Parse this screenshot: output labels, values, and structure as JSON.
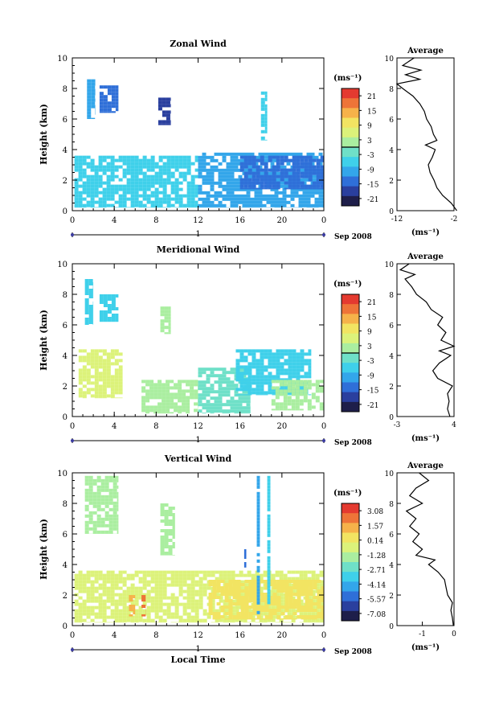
{
  "date_label": "Sep 2008",
  "colorbar_colors": [
    "#1e1e4a",
    "#2a3f9e",
    "#2f6fd8",
    "#33a6ea",
    "#3fd0ea",
    "#6fe0c8",
    "#aaeea0",
    "#dcf27a",
    "#f2e462",
    "#f6b24a",
    "#ee7438",
    "#e43a30"
  ],
  "chart_data": [
    {
      "type": "heatmap",
      "title": "Zonal Wind",
      "xlabel": "",
      "ylabel": "Height (km)",
      "x_ticks": [
        "0",
        "4",
        "8",
        "12",
        "16",
        "20",
        "0"
      ],
      "y_ticks": [
        "0",
        "2",
        "4",
        "6",
        "8",
        "10"
      ],
      "xlim": [
        0,
        24
      ],
      "ylim": [
        0,
        10
      ],
      "day_label": "1",
      "colorbar_unit": "(ms⁻¹)",
      "colorbar_ticks": [
        "21",
        "15",
        "9",
        "3",
        "-3",
        "-9",
        "-15",
        "-21"
      ],
      "colorbar_zero_line_between": [
        "3",
        "-3"
      ],
      "patches": [
        {
          "x0": 1.4,
          "x1": 2.2,
          "y0": 6.0,
          "y1": 8.6,
          "level": 3
        },
        {
          "x0": 2.6,
          "x1": 4.4,
          "y0": 6.4,
          "y1": 8.2,
          "level": 2
        },
        {
          "x0": 8.2,
          "x1": 9.4,
          "y0": 5.6,
          "y1": 7.4,
          "level": 1
        },
        {
          "x0": 18.0,
          "x1": 18.6,
          "y0": 4.6,
          "y1": 7.8,
          "level": 4
        },
        {
          "x0": 0.2,
          "x1": 12.0,
          "y0": 0.2,
          "y1": 3.6,
          "level": 4
        },
        {
          "x0": 12.0,
          "x1": 24.0,
          "y0": 0.2,
          "y1": 3.8,
          "level": 3
        },
        {
          "x0": 16.0,
          "x1": 24.0,
          "y0": 1.4,
          "y1": 3.6,
          "level": 2
        }
      ],
      "average": {
        "title": "Average",
        "xlabel": "(ms⁻¹)",
        "x_ticks": [
          "-12",
          "-2"
        ],
        "xlim": [
          -12,
          -2
        ],
        "height": [
          0,
          0.5,
          1,
          1.5,
          2,
          2.5,
          3,
          3.5,
          4,
          4.3,
          4.6,
          5,
          5.5,
          6,
          6.5,
          7,
          7.5,
          8,
          8.3,
          8.6,
          8.9,
          9.2,
          9.5,
          10
        ],
        "values": [
          -1.5,
          -2.5,
          -4,
          -5,
          -5.5,
          -6.2,
          -6.5,
          -5.8,
          -5.3,
          -7,
          -5,
          -5.6,
          -6,
          -6.8,
          -7.2,
          -8,
          -9.2,
          -11,
          -12,
          -8,
          -10.5,
          -7.8,
          -11,
          -9
        ]
      }
    },
    {
      "type": "heatmap",
      "title": "Meridional Wind",
      "xlabel": "",
      "ylabel": "Height (km)",
      "x_ticks": [
        "0",
        "4",
        "8",
        "12",
        "16",
        "20",
        "0"
      ],
      "y_ticks": [
        "0",
        "2",
        "4",
        "6",
        "8",
        "10"
      ],
      "xlim": [
        0,
        24
      ],
      "ylim": [
        0,
        10
      ],
      "day_label": "1",
      "colorbar_unit": "(ms⁻¹)",
      "colorbar_ticks": [
        "21",
        "15",
        "9",
        "3",
        "-3",
        "-9",
        "-15",
        "-21"
      ],
      "colorbar_zero_line_between": [
        "3",
        "-3"
      ],
      "patches": [
        {
          "x0": 1.2,
          "x1": 2.0,
          "y0": 6.0,
          "y1": 9.0,
          "level": 4
        },
        {
          "x0": 2.6,
          "x1": 4.4,
          "y0": 6.2,
          "y1": 8.0,
          "level": 4
        },
        {
          "x0": 8.4,
          "x1": 9.4,
          "y0": 5.4,
          "y1": 7.2,
          "level": 6
        },
        {
          "x0": 0.6,
          "x1": 4.8,
          "y0": 1.2,
          "y1": 4.4,
          "level": 7
        },
        {
          "x0": 6.6,
          "x1": 12.0,
          "y0": 0.2,
          "y1": 2.4,
          "level": 6
        },
        {
          "x0": 12.0,
          "x1": 17.0,
          "y0": 0.2,
          "y1": 3.2,
          "level": 5
        },
        {
          "x0": 15.6,
          "x1": 22.8,
          "y0": 1.4,
          "y1": 4.4,
          "level": 4
        },
        {
          "x0": 19.0,
          "x1": 24.0,
          "y0": 0.4,
          "y1": 2.4,
          "level": 6
        }
      ],
      "average": {
        "title": "Average",
        "xlabel": "(ms⁻¹)",
        "x_ticks": [
          "-3",
          "4"
        ],
        "xlim": [
          -3,
          4
        ],
        "height": [
          0,
          0.5,
          1,
          1.5,
          2,
          2.5,
          3,
          3.5,
          4,
          4.3,
          4.6,
          5,
          5.5,
          6,
          6.5,
          7,
          7.5,
          8,
          8.5,
          9,
          9.3,
          9.6,
          10
        ],
        "values": [
          3.5,
          3.2,
          3.4,
          3.2,
          3.8,
          2,
          1.4,
          2.2,
          3.6,
          2.2,
          4,
          2.4,
          3,
          2,
          2.6,
          1.2,
          0.6,
          -0.6,
          -1.2,
          -2,
          -0.8,
          -2.6,
          -1.5
        ]
      }
    },
    {
      "type": "heatmap",
      "title": "Vertical Wind",
      "xlabel": "Local Time",
      "ylabel": "Height (km)",
      "x_ticks": [
        "0",
        "4",
        "8",
        "12",
        "16",
        "20",
        "0"
      ],
      "y_ticks": [
        "0",
        "2",
        "4",
        "6",
        "8",
        "10"
      ],
      "xlim": [
        0,
        24
      ],
      "ylim": [
        0,
        10
      ],
      "day_label": "1",
      "colorbar_unit": "(ms⁻¹)",
      "colorbar_ticks": [
        "3.08",
        "1.57",
        "0.14",
        "-1.28",
        "-2.71",
        "-4.14",
        "-5.57",
        "-7.08"
      ],
      "colorbar_zero_line_between": [],
      "patches": [
        {
          "x0": 1.2,
          "x1": 4.4,
          "y0": 6.0,
          "y1": 9.8,
          "level": 6
        },
        {
          "x0": 8.4,
          "x1": 9.8,
          "y0": 4.6,
          "y1": 8.0,
          "level": 6
        },
        {
          "x0": 0.2,
          "x1": 24.0,
          "y0": 0.2,
          "y1": 3.6,
          "level": 7
        },
        {
          "x0": 13.0,
          "x1": 24.0,
          "y0": 0.4,
          "y1": 3.0,
          "level": 8
        },
        {
          "x0": 5.4,
          "x1": 6.0,
          "y0": 0.6,
          "y1": 2.0,
          "level": 9
        },
        {
          "x0": 6.6,
          "x1": 7.0,
          "y0": 0.6,
          "y1": 2.0,
          "level": 10
        },
        {
          "x0": 17.6,
          "x1": 17.9,
          "y0": 0.6,
          "y1": 9.8,
          "level": 3
        },
        {
          "x0": 18.6,
          "x1": 18.9,
          "y0": 1.4,
          "y1": 9.8,
          "level": 4
        },
        {
          "x0": 16.4,
          "x1": 16.6,
          "y0": 3.8,
          "y1": 5.0,
          "level": 2
        }
      ],
      "average": {
        "title": "Average",
        "xlabel": "(ms⁻¹)",
        "x_ticks": [
          "-1",
          "0"
        ],
        "xlim": [
          -1.8,
          0
        ],
        "height": [
          0,
          0.5,
          1,
          1.5,
          2,
          2.5,
          3,
          3.5,
          4,
          4.3,
          4.6,
          5,
          5.5,
          6,
          6.5,
          7,
          7.5,
          8,
          8.5,
          9,
          9.5,
          10
        ],
        "values": [
          -0.02,
          -0.05,
          -0.1,
          -0.05,
          -0.2,
          -0.25,
          -0.3,
          -0.5,
          -0.8,
          -0.6,
          -1.2,
          -1.0,
          -1.3,
          -1.1,
          -1.4,
          -1.2,
          -1.5,
          -1.0,
          -1.4,
          -1.2,
          -0.8,
          -1.1
        ]
      }
    }
  ]
}
